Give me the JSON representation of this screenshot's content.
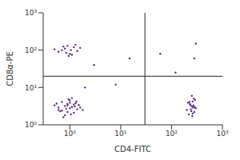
{
  "chart_data": {
    "type": "scatter",
    "x_label": "CD4-FITC",
    "y_label": "CD8α-PE",
    "log": true,
    "grid": false,
    "marker": "dot",
    "color": "#5a2d8c",
    "xlim": [
      0.3,
      1000
    ],
    "ylim": [
      1,
      1000
    ],
    "xticks": [
      {
        "value": 1,
        "label": "10⁰"
      },
      {
        "value": 10,
        "label": "10¹"
      },
      {
        "value": 100,
        "label": "10²"
      },
      {
        "value": 1000,
        "label": "10³"
      }
    ],
    "yticks": [
      {
        "value": 1,
        "label": "10⁰"
      },
      {
        "value": 10,
        "label": "10¹"
      },
      {
        "value": 100,
        "label": "10²"
      },
      {
        "value": 1000,
        "label": "10³"
      }
    ],
    "gates": {
      "x": 30,
      "y": 20
    },
    "x": [
      0.6,
      0.8,
      1.0,
      1.2,
      0.7,
      0.9,
      1.1,
      1.4,
      0.5,
      1.6,
      0.8,
      1.0,
      1.3,
      0.7,
      0.9,
      1.2,
      0.6,
      1.5,
      1.1,
      0.85,
      1.0,
      0.75,
      1.25,
      0.95,
      1.8,
      0.55,
      1.05,
      0.65,
      1.35,
      0.9,
      200,
      250,
      280,
      230,
      260,
      300,
      220,
      270,
      240,
      290,
      210,
      255,
      265,
      235,
      275,
      245,
      225,
      285,
      250,
      260,
      0.6,
      0.8,
      1.0,
      1.2,
      0.7,
      0.9,
      1.4,
      1.1,
      0.5,
      1.6,
      0.85,
      1.3,
      0.95,
      0.75,
      1.05,
      3,
      8,
      15,
      60,
      280,
      300,
      2,
      120
    ],
    "y": [
      2.5,
      3.2,
      2.8,
      3.5,
      4.1,
      2.2,
      3.0,
      2.6,
      3.3,
      2.9,
      1.8,
      4.5,
      3.8,
      2.4,
      3.6,
      2.1,
      2.9,
      3.4,
      5.2,
      2.7,
      3.9,
      1.6,
      3.1,
      4.8,
      2.5,
      3.7,
      1.9,
      2.3,
      4.2,
      3.3,
      2.5,
      3.1,
      2.2,
      3.6,
      4.2,
      2.8,
      1.9,
      3.3,
      2.6,
      4.6,
      3.9,
      1.7,
      2.9,
      3.4,
      5.0,
      2.3,
      4.1,
      3.0,
      6.0,
      2.0,
      90,
      110,
      80,
      120,
      100,
      130,
      95,
      75,
      105,
      115,
      85,
      140,
      70,
      125,
      100,
      40,
      12,
      60,
      80,
      60,
      150,
      10,
      25
    ]
  }
}
